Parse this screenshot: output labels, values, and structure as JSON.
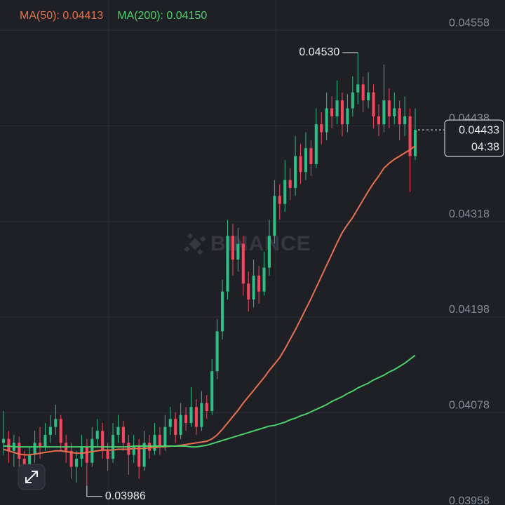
{
  "chart_data": {
    "type": "candlestick",
    "watermark": "BINANCE",
    "ylim": [
      0.03962,
      0.04596
    ],
    "yticks": [
      0.04558,
      0.04438,
      0.04318,
      0.04198,
      0.04078,
      0.03958
    ],
    "grid": true,
    "up_color": "#2ebd85",
    "down_color": "#f6465d",
    "open": [
      0.0404,
      0.04045,
      0.0403,
      0.0404,
      0.0402,
      0.04005,
      0.04025,
      0.0404,
      0.04035,
      0.0405,
      0.0406,
      0.0407,
      0.0404,
      0.0403,
      0.0401,
      0.0402,
      0.04035,
      0.04015,
      0.04045,
      0.04055,
      0.0403,
      0.0402,
      0.0405,
      0.0406,
      0.0404,
      0.04025,
      0.04035,
      0.0401,
      0.0404,
      0.0403,
      0.0405,
      0.04035,
      0.0406,
      0.0407,
      0.0405,
      0.04075,
      0.04065,
      0.04085,
      0.0406,
      0.0409,
      0.0408,
      0.0413,
      0.0418,
      0.0423,
      0.043,
      0.0427,
      0.0429,
      0.0424,
      0.0422,
      0.0425,
      0.0423,
      0.0426,
      0.043,
      0.0435,
      0.0434,
      0.0437,
      0.0436,
      0.044,
      0.0438,
      0.0441,
      0.0439,
      0.0444,
      0.0443,
      0.0446,
      0.0445,
      0.0447,
      0.0444,
      0.0446,
      0.0448,
      0.0449,
      0.0447,
      0.0448,
      0.0445,
      0.0444,
      0.0447,
      0.0445,
      0.0446,
      0.0444,
      0.0445,
      0.044
    ],
    "high": [
      0.0408,
      0.04055,
      0.0405,
      0.04048,
      0.0403,
      0.04035,
      0.04055,
      0.0406,
      0.04065,
      0.04075,
      0.04088,
      0.04075,
      0.0405,
      0.0404,
      0.0403,
      0.0405,
      0.04045,
      0.0406,
      0.0407,
      0.04065,
      0.0404,
      0.04065,
      0.04075,
      0.04068,
      0.0405,
      0.0405,
      0.04045,
      0.04055,
      0.0405,
      0.04065,
      0.0406,
      0.04075,
      0.04085,
      0.04078,
      0.0409,
      0.04085,
      0.0411,
      0.04095,
      0.04105,
      0.041,
      0.04145,
      0.04195,
      0.04245,
      0.0432,
      0.04315,
      0.0431,
      0.043,
      0.04255,
      0.0427,
      0.04262,
      0.0428,
      0.0432,
      0.0437,
      0.04365,
      0.04395,
      0.04385,
      0.04425,
      0.04415,
      0.0443,
      0.0442,
      0.0446,
      0.04455,
      0.0448,
      0.04475,
      0.04495,
      0.0448,
      0.04478,
      0.045,
      0.0453,
      0.045,
      0.04505,
      0.0449,
      0.04465,
      0.04515,
      0.04485,
      0.0448,
      0.0447,
      0.04475,
      0.0446,
      0.0446
    ],
    "low": [
      0.04025,
      0.04015,
      0.0401,
      0.04005,
      0.0399,
      0.04,
      0.04015,
      0.0402,
      0.0403,
      0.0404,
      0.0405,
      0.0403,
      0.04015,
      0.03995,
      0.0399,
      0.0401,
      0.03986,
      0.0401,
      0.04035,
      0.0402,
      0.04005,
      0.04015,
      0.0404,
      0.0403,
      0.04,
      0.04015,
      0.03995,
      0.04005,
      0.0402,
      0.04025,
      0.04025,
      0.0403,
      0.0405,
      0.0404,
      0.04045,
      0.04055,
      0.0406,
      0.0405,
      0.04055,
      0.0407,
      0.04075,
      0.0412,
      0.0417,
      0.0422,
      0.0425,
      0.04255,
      0.04225,
      0.04205,
      0.0421,
      0.04215,
      0.04225,
      0.0425,
      0.0429,
      0.0432,
      0.0433,
      0.04345,
      0.0435,
      0.04365,
      0.0437,
      0.04375,
      0.04385,
      0.04415,
      0.0442,
      0.04435,
      0.0444,
      0.04425,
      0.0443,
      0.0445,
      0.04465,
      0.04455,
      0.0446,
      0.04435,
      0.04425,
      0.0443,
      0.04435,
      0.0444,
      0.0442,
      0.04425,
      0.04355,
      0.04395
    ],
    "close": [
      0.04045,
      0.0403,
      0.0404,
      0.0402,
      0.04005,
      0.04025,
      0.0404,
      0.04035,
      0.0405,
      0.0406,
      0.0407,
      0.0404,
      0.0403,
      0.0401,
      0.0402,
      0.04035,
      0.04015,
      0.04045,
      0.04055,
      0.0403,
      0.0402,
      0.0405,
      0.0406,
      0.0404,
      0.04025,
      0.04035,
      0.0401,
      0.0404,
      0.0403,
      0.0405,
      0.04035,
      0.0406,
      0.0407,
      0.0405,
      0.04075,
      0.04065,
      0.04085,
      0.0406,
      0.0409,
      0.0408,
      0.0413,
      0.0418,
      0.0423,
      0.043,
      0.0427,
      0.0429,
      0.0424,
      0.0422,
      0.0425,
      0.0423,
      0.0426,
      0.043,
      0.0435,
      0.0434,
      0.0437,
      0.0436,
      0.044,
      0.0438,
      0.0441,
      0.0439,
      0.0444,
      0.0443,
      0.0446,
      0.0445,
      0.0447,
      0.0444,
      0.0446,
      0.0448,
      0.0449,
      0.0447,
      0.0448,
      0.0445,
      0.0444,
      0.0447,
      0.0445,
      0.0446,
      0.0444,
      0.0445,
      0.044,
      0.04433
    ],
    "series": [
      {
        "name": "MA(50): 0.04413",
        "color": "#e8704f",
        "values": [
          0.04032,
          0.0403,
          0.04028,
          0.04026,
          0.04025,
          0.04025,
          0.04026,
          0.04027,
          0.04028,
          0.04029,
          0.0403,
          0.0403,
          0.04029,
          0.04028,
          0.04027,
          0.04027,
          0.04028,
          0.04029,
          0.0403,
          0.04031,
          0.04031,
          0.04031,
          0.04032,
          0.04032,
          0.04032,
          0.04033,
          0.04033,
          0.04033,
          0.04034,
          0.04034,
          0.04035,
          0.04035,
          0.04036,
          0.04036,
          0.04037,
          0.04038,
          0.04039,
          0.0404,
          0.04041,
          0.04042,
          0.04045,
          0.0405,
          0.04057,
          0.04065,
          0.04073,
          0.04081,
          0.0409,
          0.04098,
          0.04106,
          0.04114,
          0.04122,
          0.04131,
          0.04139,
          0.04147,
          0.04158,
          0.0417,
          0.04182,
          0.04195,
          0.04208,
          0.04221,
          0.04235,
          0.04249,
          0.04263,
          0.04277,
          0.04291,
          0.04304,
          0.04314,
          0.04323,
          0.04334,
          0.04345,
          0.04356,
          0.04366,
          0.04375,
          0.04385,
          0.04391,
          0.04396,
          0.044,
          0.04404,
          0.04408,
          0.04413
        ]
      },
      {
        "name": "MA(200): 0.04150",
        "color": "#4fcf6b",
        "values": [
          0.04036,
          0.04036,
          0.04035,
          0.04035,
          0.04035,
          0.04035,
          0.04035,
          0.04035,
          0.04035,
          0.04035,
          0.04035,
          0.04035,
          0.04035,
          0.04035,
          0.04035,
          0.04035,
          0.04035,
          0.04035,
          0.04035,
          0.04035,
          0.04035,
          0.04035,
          0.04035,
          0.04035,
          0.04035,
          0.04036,
          0.04036,
          0.04036,
          0.04036,
          0.04036,
          0.04036,
          0.04036,
          0.04036,
          0.04036,
          0.04036,
          0.04036,
          0.04035,
          0.04035,
          0.04036,
          0.04037,
          0.04039,
          0.04041,
          0.04043,
          0.04045,
          0.04047,
          0.04049,
          0.04051,
          0.04053,
          0.04055,
          0.04057,
          0.04059,
          0.04061,
          0.04062,
          0.04064,
          0.04066,
          0.04069,
          0.04071,
          0.04074,
          0.04076,
          0.04079,
          0.04082,
          0.04085,
          0.04088,
          0.04092,
          0.04095,
          0.04098,
          0.04102,
          0.04105,
          0.04109,
          0.04112,
          0.04115,
          0.04119,
          0.04122,
          0.04125,
          0.04129,
          0.04132,
          0.04136,
          0.0414,
          0.04145,
          0.0415
        ]
      }
    ],
    "high_marker": {
      "value": 0.0453,
      "label": "0.04530"
    },
    "low_marker": 0.03986,
    "last_price": 0.04433,
    "countdown": "04:38"
  }
}
